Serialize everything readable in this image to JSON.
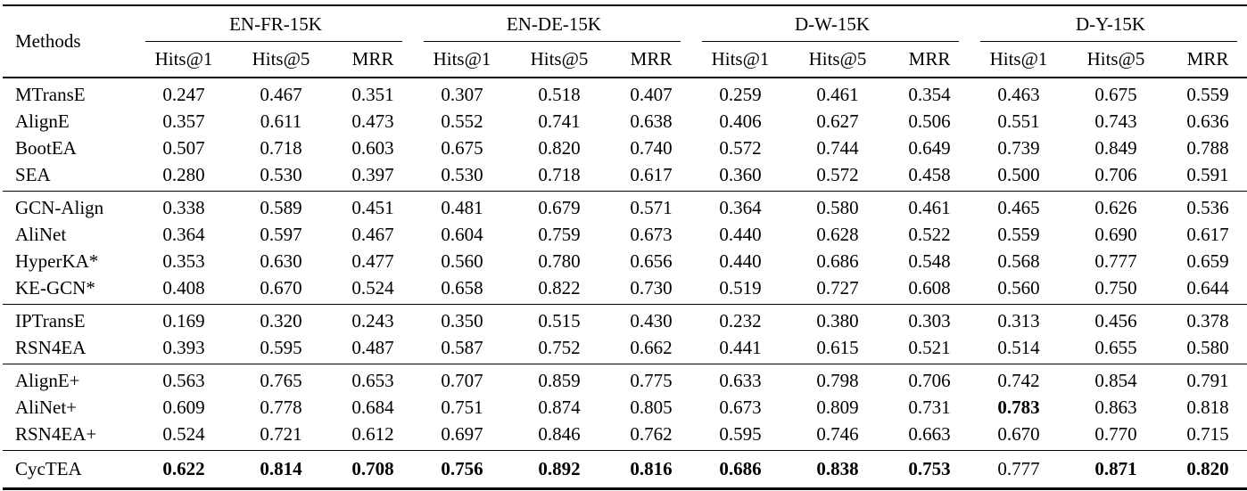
{
  "table": {
    "corner_header": "Methods",
    "groups": [
      {
        "name": "EN-FR-15K"
      },
      {
        "name": "EN-DE-15K"
      },
      {
        "name": "D-W-15K"
      },
      {
        "name": "D-Y-15K"
      }
    ],
    "metric_headers": [
      "Hits@1",
      "Hits@5",
      "MRR"
    ],
    "sections": [
      {
        "rows": [
          {
            "method": "MTransE",
            "values": [
              "0.247",
              "0.467",
              "0.351",
              "0.307",
              "0.518",
              "0.407",
              "0.259",
              "0.461",
              "0.354",
              "0.463",
              "0.675",
              "0.559"
            ],
            "bold_indices": [],
            "method_bold": false
          },
          {
            "method": "AlignE",
            "values": [
              "0.357",
              "0.611",
              "0.473",
              "0.552",
              "0.741",
              "0.638",
              "0.406",
              "0.627",
              "0.506",
              "0.551",
              "0.743",
              "0.636"
            ],
            "bold_indices": [],
            "method_bold": false
          },
          {
            "method": "BootEA",
            "values": [
              "0.507",
              "0.718",
              "0.603",
              "0.675",
              "0.820",
              "0.740",
              "0.572",
              "0.744",
              "0.649",
              "0.739",
              "0.849",
              "0.788"
            ],
            "bold_indices": [],
            "method_bold": false
          },
          {
            "method": "SEA",
            "values": [
              "0.280",
              "0.530",
              "0.397",
              "0.530",
              "0.718",
              "0.617",
              "0.360",
              "0.572",
              "0.458",
              "0.500",
              "0.706",
              "0.591"
            ],
            "bold_indices": [],
            "method_bold": false
          }
        ]
      },
      {
        "rows": [
          {
            "method": "GCN-Align",
            "values": [
              "0.338",
              "0.589",
              "0.451",
              "0.481",
              "0.679",
              "0.571",
              "0.364",
              "0.580",
              "0.461",
              "0.465",
              "0.626",
              "0.536"
            ],
            "bold_indices": [],
            "method_bold": false
          },
          {
            "method": "AliNet",
            "values": [
              "0.364",
              "0.597",
              "0.467",
              "0.604",
              "0.759",
              "0.673",
              "0.440",
              "0.628",
              "0.522",
              "0.559",
              "0.690",
              "0.617"
            ],
            "bold_indices": [],
            "method_bold": false
          },
          {
            "method": "HyperKA*",
            "values": [
              "0.353",
              "0.630",
              "0.477",
              "0.560",
              "0.780",
              "0.656",
              "0.440",
              "0.686",
              "0.548",
              "0.568",
              "0.777",
              "0.659"
            ],
            "bold_indices": [],
            "method_bold": false
          },
          {
            "method": "KE-GCN*",
            "values": [
              "0.408",
              "0.670",
              "0.524",
              "0.658",
              "0.822",
              "0.730",
              "0.519",
              "0.727",
              "0.608",
              "0.560",
              "0.750",
              "0.644"
            ],
            "bold_indices": [],
            "method_bold": false
          }
        ]
      },
      {
        "rows": [
          {
            "method": "IPTransE",
            "values": [
              "0.169",
              "0.320",
              "0.243",
              "0.350",
              "0.515",
              "0.430",
              "0.232",
              "0.380",
              "0.303",
              "0.313",
              "0.456",
              "0.378"
            ],
            "bold_indices": [],
            "method_bold": false
          },
          {
            "method": "RSN4EA",
            "values": [
              "0.393",
              "0.595",
              "0.487",
              "0.587",
              "0.752",
              "0.662",
              "0.441",
              "0.615",
              "0.521",
              "0.514",
              "0.655",
              "0.580"
            ],
            "bold_indices": [],
            "method_bold": false
          }
        ]
      },
      {
        "rows": [
          {
            "method": "AlignE+",
            "values": [
              "0.563",
              "0.765",
              "0.653",
              "0.707",
              "0.859",
              "0.775",
              "0.633",
              "0.798",
              "0.706",
              "0.742",
              "0.854",
              "0.791"
            ],
            "bold_indices": [],
            "method_bold": false
          },
          {
            "method": "AliNet+",
            "values": [
              "0.609",
              "0.778",
              "0.684",
              "0.751",
              "0.874",
              "0.805",
              "0.673",
              "0.809",
              "0.731",
              "0.783",
              "0.863",
              "0.818"
            ],
            "bold_indices": [
              9
            ],
            "method_bold": false
          },
          {
            "method": "RSN4EA+",
            "values": [
              "0.524",
              "0.721",
              "0.612",
              "0.697",
              "0.846",
              "0.762",
              "0.595",
              "0.746",
              "0.663",
              "0.670",
              "0.770",
              "0.715"
            ],
            "bold_indices": [],
            "method_bold": false
          }
        ]
      },
      {
        "final": true,
        "rows": [
          {
            "method": "CycTEA",
            "values": [
              "0.622",
              "0.814",
              "0.708",
              "0.756",
              "0.892",
              "0.816",
              "0.686",
              "0.838",
              "0.753",
              "0.777",
              "0.871",
              "0.820"
            ],
            "bold_indices": [
              0,
              1,
              2,
              3,
              4,
              5,
              6,
              7,
              8,
              10,
              11
            ],
            "method_bold": false
          }
        ]
      }
    ]
  }
}
